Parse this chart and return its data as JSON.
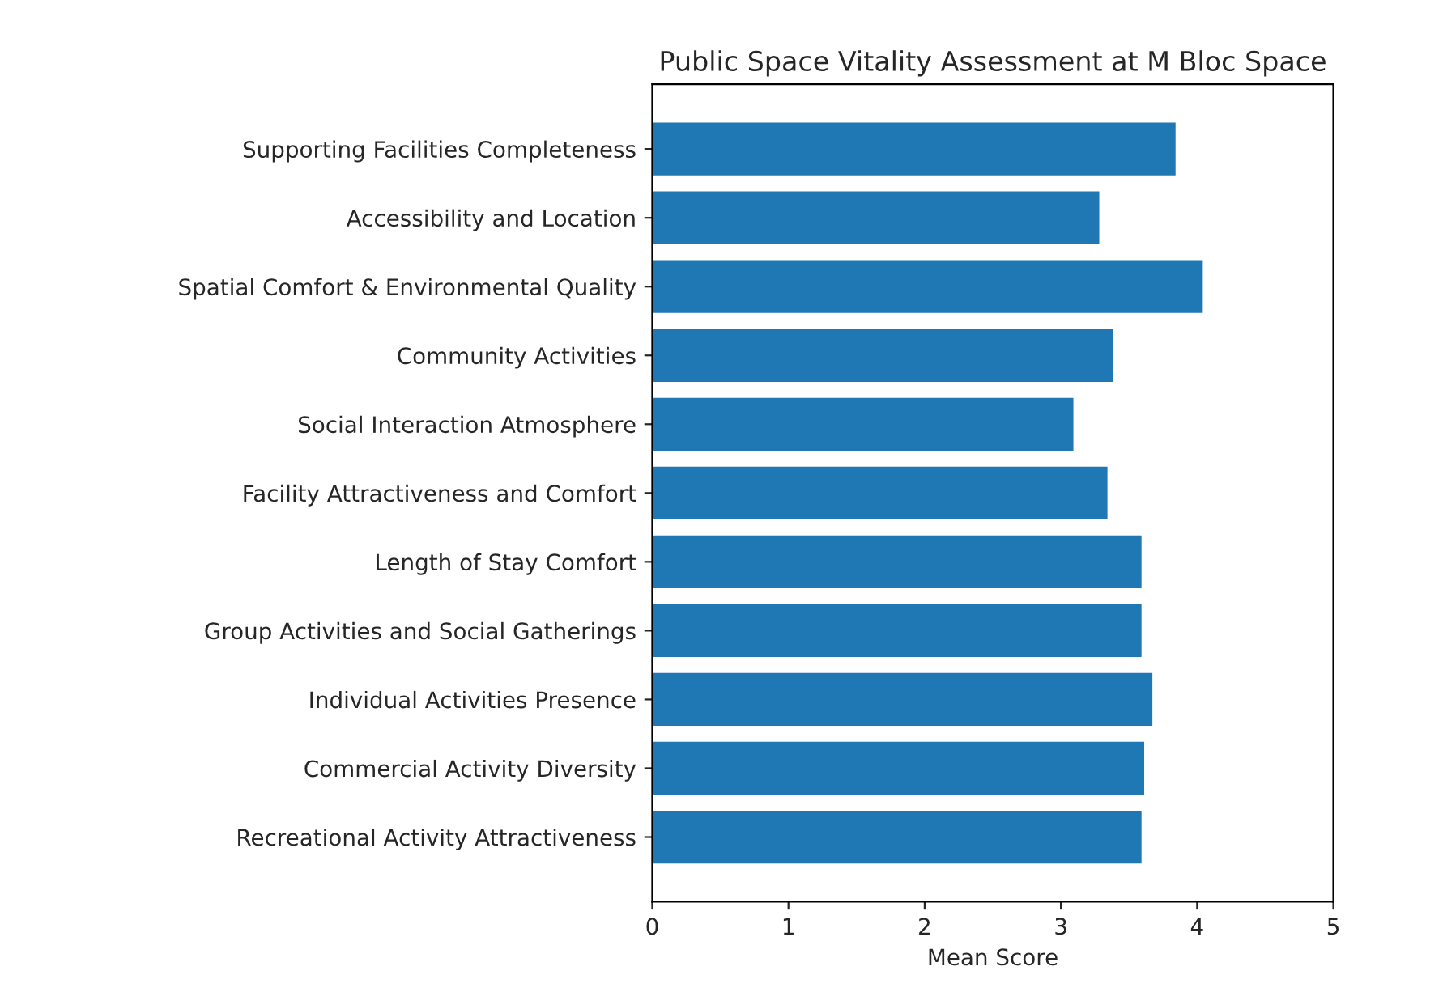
{
  "chart_data": {
    "type": "bar",
    "orientation": "horizontal",
    "title": "Public Space Vitality Assessment at M Bloc Space",
    "xlabel": "Mean Score",
    "categories": [
      "Supporting Facilities Completeness",
      "Accessibility and Location",
      "Spatial Comfort & Environmental Quality",
      "Community Activities",
      "Social Interaction Atmosphere",
      "Facility Attractiveness and Comfort",
      "Length of Stay Comfort",
      "Group Activities and Social Gatherings",
      "Individual Activities Presence",
      "Commercial Activity Diversity",
      "Recreational Activity Attractiveness"
    ],
    "values": [
      3.85,
      3.29,
      4.05,
      3.39,
      3.1,
      3.35,
      3.6,
      3.6,
      3.68,
      3.62,
      3.6
    ],
    "color": "#1f77b4",
    "xlim": [
      0,
      5
    ],
    "xticks": [
      0,
      1,
      2,
      3,
      4,
      5
    ],
    "grid": false
  }
}
